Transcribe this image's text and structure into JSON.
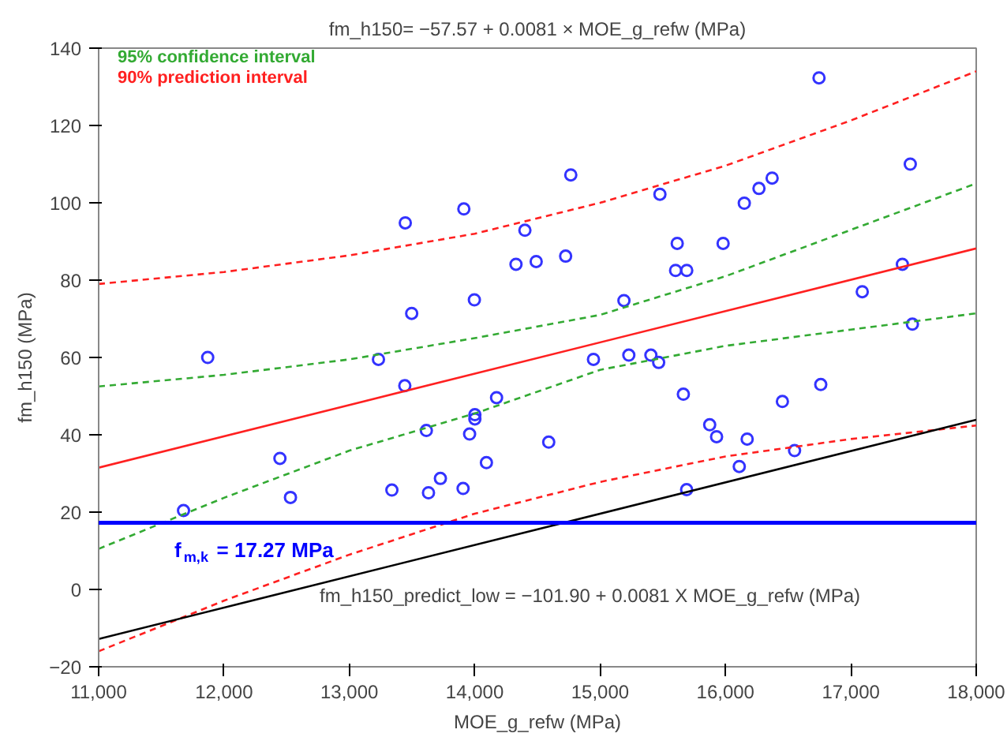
{
  "chart_data": {
    "type": "scatter",
    "title": "fm_h150= −57.57 + 0.0081 × MOE_g_refw (MPa)",
    "xlabel": "MOE_g_refw (MPa)",
    "ylabel": "fm_h150 (MPa)",
    "xlim": [
      11000,
      18000
    ],
    "ylim": [
      -20,
      140
    ],
    "xticks": [
      {
        "value": 11000,
        "label": "11,000"
      },
      {
        "value": 12000,
        "label": "12,000"
      },
      {
        "value": 13000,
        "label": "13,000"
      },
      {
        "value": 14000,
        "label": "14,000"
      },
      {
        "value": 15000,
        "label": "15,000"
      },
      {
        "value": 16000,
        "label": "16,000"
      },
      {
        "value": 17000,
        "label": "17,000"
      },
      {
        "value": 18000,
        "label": "18,000"
      }
    ],
    "yticks": [
      -20,
      0,
      20,
      40,
      60,
      80,
      100,
      120,
      140
    ],
    "grid": false,
    "legend": "top left",
    "series": [
      {
        "marker": "circle",
        "color": "#3333ff",
        "x": [
          11870,
          13232,
          13446,
          13497,
          13913,
          13997,
          14400,
          14329,
          14490,
          14766,
          14725,
          15477,
          15615,
          15602,
          15691,
          15981,
          16150,
          16267,
          16372,
          16746,
          17474,
          17411,
          17091,
          17491,
          15190,
          14947,
          15229,
          15405,
          15467,
          13442,
          14174,
          14001,
          14001,
          13614,
          13959,
          14590,
          12446,
          14093,
          13726,
          13339,
          13631,
          13907,
          12530,
          11677,
          15664,
          16454,
          16760,
          15874,
          15929,
          16173,
          16551,
          16110,
          15690
        ],
        "values": [
          60,
          59.5,
          94.8,
          71.4,
          98.4,
          74.9,
          92.9,
          84.1,
          84.8,
          107.2,
          86.2,
          102.2,
          89.5,
          82.5,
          82.5,
          89.5,
          99.9,
          103.7,
          106.4,
          132.3,
          110,
          84.1,
          77,
          68.6,
          74.7,
          59.5,
          60.6,
          60.6,
          58.7,
          52.7,
          49.6,
          45.2,
          44.1,
          41.1,
          40.2,
          38.1,
          33.9,
          32.8,
          28.7,
          25.7,
          25,
          26.1,
          23.8,
          20.4,
          50.5,
          48.6,
          53,
          42.6,
          39.5,
          38.9,
          35.9,
          31.8,
          25.8
        ]
      },
      {
        "type": "line",
        "color": "#ff2020",
        "line_style": "solid",
        "x": [
          11000,
          18000
        ],
        "values": [
          31.5,
          88.2
        ],
        "marker": "none"
      },
      {
        "type": "line",
        "name": "95% confidence interval",
        "color": "#33aa33",
        "line_style": "dashed",
        "x": [
          11000,
          12000,
          13000,
          14000,
          15000,
          16000,
          17000,
          18000
        ],
        "values": [
          52.5,
          55.5,
          59.5,
          65,
          71,
          81,
          93,
          105
        ],
        "marker": "none"
      },
      {
        "type": "line",
        "color": "#33aa33",
        "line_style": "dashed",
        "x": [
          11000,
          12000,
          13000,
          14000,
          15000,
          16000,
          17000,
          18000
        ],
        "values": [
          10.5,
          23.7,
          35.9,
          45.5,
          56.8,
          63,
          67.2,
          71.4
        ],
        "marker": "none"
      },
      {
        "type": "line",
        "name": "90% prediction interval",
        "color": "#ff2020",
        "line_style": "dashed",
        "x": [
          11000,
          12000,
          13000,
          14000,
          15000,
          16000,
          17000,
          18000
        ],
        "values": [
          79,
          82.1,
          86.4,
          92,
          100,
          109.6,
          121.3,
          134
        ],
        "marker": "none"
      },
      {
        "type": "line",
        "color": "#ff2020",
        "line_style": "dashed",
        "x": [
          11000,
          12000,
          13000,
          14000,
          15000,
          16000,
          17000,
          18000
        ],
        "values": [
          -16,
          -2.9,
          9,
          19.6,
          27.8,
          34.4,
          38.9,
          42.4
        ],
        "marker": "none"
      },
      {
        "type": "line",
        "color": "#000000",
        "line_style": "solid",
        "x": [
          11000,
          18000
        ],
        "values": [
          -12.8,
          43.9
        ],
        "marker": "none"
      }
    ],
    "ref_lines": [
      {
        "axis": "y",
        "value": 17.27,
        "label": "f$_{m,k}$ = 17.27 MPa",
        "color": "#0000ff"
      }
    ],
    "annotations": [
      "fm_h150_predict_low = −101.90 + 0.0081 X MOE_g_refw (MPa)"
    ]
  }
}
